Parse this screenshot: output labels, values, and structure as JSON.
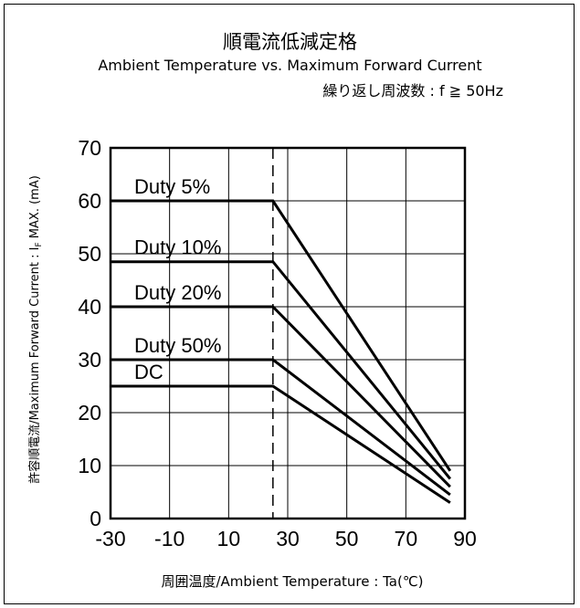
{
  "header": {
    "title": "順電流低減定格",
    "subtitle": "Ambient Temperature vs. Maximum Forward Current",
    "condition": "繰り返し周波数 : f ≧ 50Hz"
  },
  "chart_data": {
    "type": "line",
    "title": "順電流低減定格",
    "xlabel": "周囲温度/Ambient Temperature : Ta(℃)",
    "ylabel_main": "許容順電流/Maximum Forward Current : I",
    "ylabel_sub": "F",
    "ylabel_tail": " MAX. (mA)",
    "xlim": [
      -30,
      90
    ],
    "ylim": [
      0,
      70
    ],
    "xticks": [
      "-30",
      "-10",
      "10",
      "30",
      "50",
      "70",
      "90"
    ],
    "yticks": [
      "0",
      "10",
      "20",
      "30",
      "40",
      "50",
      "60",
      "70"
    ],
    "x_gridlines": [
      -30,
      -10,
      10,
      30,
      50,
      70,
      90
    ],
    "y_gridlines": [
      0,
      10,
      20,
      30,
      40,
      50,
      60,
      70
    ],
    "dashed_x": 25,
    "grid": true,
    "series": [
      {
        "name": "Duty 5%",
        "x": [
          -30,
          25,
          85
        ],
        "y": [
          60,
          60,
          9
        ]
      },
      {
        "name": "Duty 10%",
        "x": [
          -30,
          25,
          85
        ],
        "y": [
          48.5,
          48.5,
          7.5
        ]
      },
      {
        "name": "Duty 20%",
        "x": [
          -30,
          25,
          85
        ],
        "y": [
          40,
          40,
          6
        ]
      },
      {
        "name": "Duty 50%",
        "x": [
          -30,
          25,
          85
        ],
        "y": [
          30,
          30,
          4.5
        ]
      },
      {
        "name": "DC",
        "x": [
          -30,
          25,
          85
        ],
        "y": [
          25,
          25,
          3
        ]
      }
    ]
  }
}
